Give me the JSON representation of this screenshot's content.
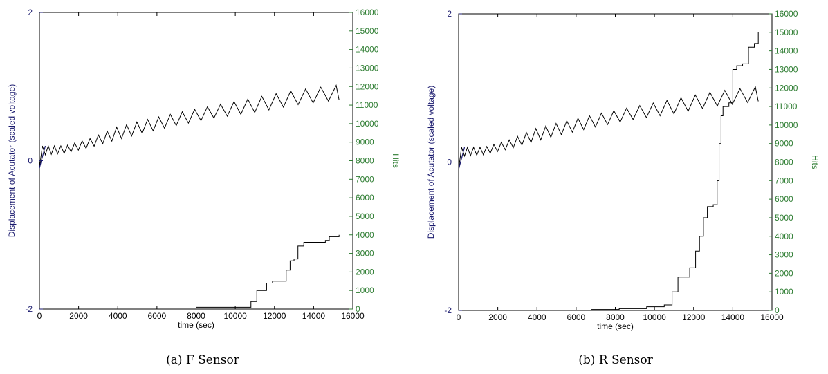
{
  "colors": {
    "left_axis": "#1a1a6e",
    "right_axis": "#2e7d32",
    "frame": "#000000",
    "line": "#000000",
    "background": "#ffffff"
  },
  "captions": [
    "(a) F Sensor",
    "(b) R Sensor"
  ],
  "chart_data": [
    {
      "type": "line",
      "caption": "(a) F Sensor",
      "xlabel": "time (sec)",
      "ylabel_left": "Displacement of Acutator (scaled voltage)",
      "ylabel_right": "Hits",
      "xlim": [
        0,
        16000
      ],
      "ylim_left": [
        -2,
        2
      ],
      "ylim_right": [
        0,
        16000
      ],
      "xticks": [
        "0",
        "2000",
        "4000",
        "6000",
        "8000",
        "10000",
        "12000",
        "14000",
        "16000"
      ],
      "yticks_left": [
        "-2",
        "0",
        "2"
      ],
      "yticks_right": [
        "0",
        "1000",
        "2000",
        "3000",
        "4000",
        "5000",
        "6000",
        "7000",
        "8000",
        "9000",
        "10000",
        "11000",
        "12000",
        "13000",
        "14000",
        "15000",
        "16000"
      ],
      "grid": false,
      "series": [
        {
          "axis": "left",
          "pattern": "triangle-wave",
          "start": [
            0,
            -0.1
          ],
          "end": [
            15300,
            1.0
          ],
          "x": [
            0,
            250,
            1300,
            2600,
            3900,
            5400,
            7100,
            9000,
            11000,
            13000,
            15300
          ],
          "upper": [
            0.2,
            0.2,
            0.2,
            0.3,
            0.45,
            0.55,
            0.65,
            0.75,
            0.85,
            0.95,
            1.02
          ],
          "lower": [
            -0.1,
            0.08,
            0.1,
            0.18,
            0.28,
            0.38,
            0.48,
            0.58,
            0.65,
            0.75,
            0.82
          ],
          "period": [
            300,
            300,
            350,
            420,
            500,
            560,
            620,
            680,
            720,
            760,
            800
          ]
        },
        {
          "axis": "right",
          "pattern": "step",
          "x": [
            1400,
            8000,
            10600,
            10800,
            11100,
            11400,
            11600,
            11900,
            12300,
            12600,
            12800,
            13000,
            13200,
            13500,
            14600,
            14800,
            15300
          ],
          "y": [
            0,
            100,
            100,
            400,
            1000,
            1000,
            1400,
            1500,
            1500,
            2100,
            2600,
            2700,
            3400,
            3600,
            3700,
            3900,
            4000
          ]
        }
      ]
    },
    {
      "type": "line",
      "caption": "(b) R Sensor",
      "xlabel": "time (sec)",
      "ylabel_left": "Displacement of Acutator (scaled voltage)",
      "ylabel_right": "Hits",
      "xlim": [
        0,
        16000
      ],
      "ylim_left": [
        -2,
        2
      ],
      "ylim_right": [
        0,
        16000
      ],
      "xticks": [
        "0",
        "2000",
        "4000",
        "6000",
        "8000",
        "10000",
        "12000",
        "14000",
        "16000"
      ],
      "yticks_left": [
        "-2",
        "0",
        "2"
      ],
      "yticks_right": [
        "0",
        "1000",
        "2000",
        "3000",
        "4000",
        "5000",
        "6000",
        "7000",
        "8000",
        "9000",
        "10000",
        "11000",
        "12000",
        "13000",
        "14000",
        "15000",
        "16000"
      ],
      "grid": false,
      "series": [
        {
          "axis": "left",
          "pattern": "triangle-wave",
          "start": [
            0,
            -0.1
          ],
          "end": [
            15300,
            1.0
          ],
          "x": [
            0,
            250,
            1300,
            2600,
            3900,
            5400,
            7100,
            9000,
            11000,
            13000,
            15300
          ],
          "upper": [
            0.2,
            0.2,
            0.2,
            0.3,
            0.45,
            0.55,
            0.65,
            0.75,
            0.85,
            0.95,
            1.02
          ],
          "lower": [
            -0.1,
            0.08,
            0.1,
            0.18,
            0.28,
            0.38,
            0.48,
            0.58,
            0.65,
            0.75,
            0.82
          ],
          "period": [
            300,
            300,
            350,
            420,
            500,
            560,
            620,
            680,
            720,
            760,
            800
          ]
        },
        {
          "axis": "right",
          "pattern": "step",
          "x": [
            1400,
            6800,
            8200,
            9600,
            10500,
            10900,
            11200,
            11600,
            11800,
            12100,
            12300,
            12500,
            12700,
            13000,
            13200,
            13300,
            13400,
            13500,
            13800,
            14000,
            14200,
            14500,
            14800,
            15100,
            15300
          ],
          "y": [
            0,
            50,
            100,
            200,
            300,
            1000,
            1800,
            1800,
            2300,
            3200,
            4000,
            5000,
            5600,
            5700,
            7000,
            9000,
            10500,
            11000,
            11200,
            13000,
            13200,
            13300,
            14200,
            14400,
            15000
          ]
        }
      ]
    }
  ]
}
